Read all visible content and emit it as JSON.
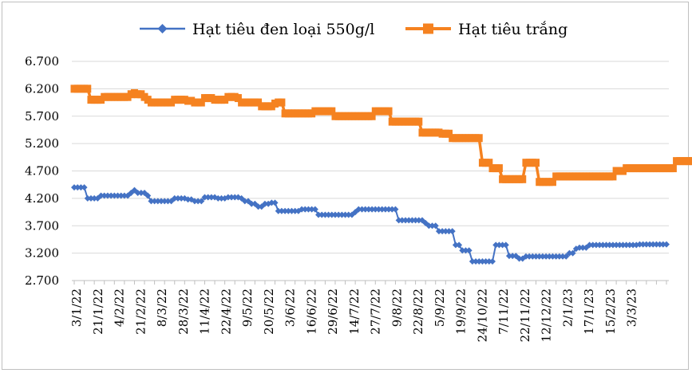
{
  "chart_data": {
    "type": "line",
    "title": "",
    "xlabel": "",
    "ylabel": "",
    "ylim": [
      2700,
      6700
    ],
    "y_ticks": [
      "2.700",
      "3.200",
      "3.700",
      "4.200",
      "4.700",
      "5.200",
      "5.700",
      "6.200",
      "6.700"
    ],
    "x_tick_labels": [
      "3/1/22",
      "21/1/22",
      "4/2/22",
      "21/2/22",
      "8/3/22",
      "28/3/22",
      "11/4/22",
      "22/4/22",
      "9/5/22",
      "20/5/22",
      "3/6/22",
      "16/6/22",
      "29/6/22",
      "14/7/22",
      "27/7/22",
      "9/8/22",
      "22/8/22",
      "5/9/22",
      "19/9/22",
      "24/10/22",
      "7/11/22",
      "22/11/22",
      "12/12/22",
      "2/1/23",
      "17/1/23",
      "15/2/23",
      "3/3/23"
    ],
    "legend_position": "top",
    "series": [
      {
        "name": "Hạt tiêu đen loại 550g/l",
        "color": "#4472c4",
        "marker": "diamond",
        "values": [
          4400,
          4400,
          4400,
          4400,
          4200,
          4200,
          4200,
          4200,
          4250,
          4250,
          4250,
          4250,
          4250,
          4250,
          4250,
          4250,
          4250,
          4300,
          4350,
          4300,
          4300,
          4300,
          4250,
          4150,
          4150,
          4150,
          4150,
          4150,
          4150,
          4150,
          4200,
          4200,
          4200,
          4200,
          4180,
          4180,
          4150,
          4150,
          4150,
          4220,
          4220,
          4220,
          4220,
          4200,
          4200,
          4200,
          4220,
          4220,
          4220,
          4220,
          4200,
          4150,
          4150,
          4100,
          4100,
          4050,
          4050,
          4100,
          4100,
          4120,
          4120,
          3970,
          3970,
          3970,
          3970,
          3970,
          3970,
          3970,
          4000,
          4000,
          4000,
          4000,
          4000,
          3900,
          3900,
          3900,
          3900,
          3900,
          3900,
          3900,
          3900,
          3900,
          3900,
          3900,
          3950,
          4000,
          4000,
          4000,
          4000,
          4000,
          4000,
          4000,
          4000,
          4000,
          4000,
          4000,
          4000,
          3800,
          3800,
          3800,
          3800,
          3800,
          3800,
          3800,
          3800,
          3750,
          3700,
          3700,
          3700,
          3600,
          3600,
          3600,
          3600,
          3600,
          3350,
          3350,
          3250,
          3250,
          3250,
          3050,
          3050,
          3050,
          3050,
          3050,
          3050,
          3050,
          3350,
          3350,
          3350,
          3350,
          3150,
          3150,
          3150,
          3100,
          3100,
          3140,
          3140,
          3140,
          3140,
          3140,
          3140,
          3140,
          3140,
          3140,
          3140,
          3140,
          3140,
          3140,
          3200,
          3200,
          3280,
          3300,
          3300,
          3300,
          3350,
          3350,
          3350,
          3350,
          3350,
          3350,
          3350,
          3350,
          3350,
          3350,
          3350,
          3350,
          3350,
          3350,
          3350,
          3360,
          3360,
          3360,
          3360,
          3360,
          3360,
          3360,
          3360,
          3360
        ]
      },
      {
        "name": "Hạt tiêu trắng",
        "color": "#f58220",
        "marker": "square",
        "values": [
          6200,
          6200,
          6200,
          6200,
          6200,
          6000,
          6000,
          6000,
          6000,
          6050,
          6050,
          6050,
          6050,
          6050,
          6050,
          6050,
          6050,
          6100,
          6120,
          6100,
          6100,
          6050,
          6000,
          5950,
          5950,
          5950,
          5950,
          5950,
          5950,
          5950,
          6000,
          6000,
          6000,
          6000,
          5980,
          5980,
          5950,
          5950,
          5950,
          6030,
          6030,
          6030,
          6000,
          6000,
          6000,
          6000,
          6050,
          6050,
          6050,
          6030,
          5950,
          5950,
          5950,
          5950,
          5950,
          5950,
          5880,
          5880,
          5880,
          5880,
          5930,
          5950,
          5950,
          5750,
          5750,
          5750,
          5750,
          5750,
          5750,
          5750,
          5750,
          5750,
          5790,
          5790,
          5790,
          5790,
          5790,
          5790,
          5700,
          5700,
          5700,
          5700,
          5700,
          5700,
          5700,
          5700,
          5700,
          5700,
          5700,
          5700,
          5790,
          5790,
          5790,
          5790,
          5790,
          5600,
          5600,
          5600,
          5600,
          5600,
          5600,
          5600,
          5600,
          5600,
          5400,
          5400,
          5400,
          5400,
          5400,
          5400,
          5380,
          5380,
          5380,
          5300,
          5300,
          5300,
          5300,
          5300,
          5300,
          5300,
          5300,
          5300,
          4850,
          4850,
          4850,
          4750,
          4750,
          4750,
          4550,
          4550,
          4550,
          4550,
          4550,
          4550,
          4550,
          4850,
          4850,
          4850,
          4850,
          4500,
          4500,
          4500,
          4500,
          4500,
          4600,
          4600,
          4600,
          4600,
          4600,
          4600,
          4600,
          4600,
          4600,
          4600,
          4600,
          4600,
          4600,
          4600,
          4600,
          4600,
          4600,
          4600,
          4700,
          4700,
          4700,
          4750,
          4750,
          4750,
          4750,
          4750,
          4750,
          4750,
          4750,
          4750,
          4750,
          4750,
          4750,
          4750,
          4750,
          4750,
          4880,
          4880,
          4880,
          4880,
          4880,
          4880,
          4880,
          4880,
          4880
        ]
      }
    ]
  }
}
